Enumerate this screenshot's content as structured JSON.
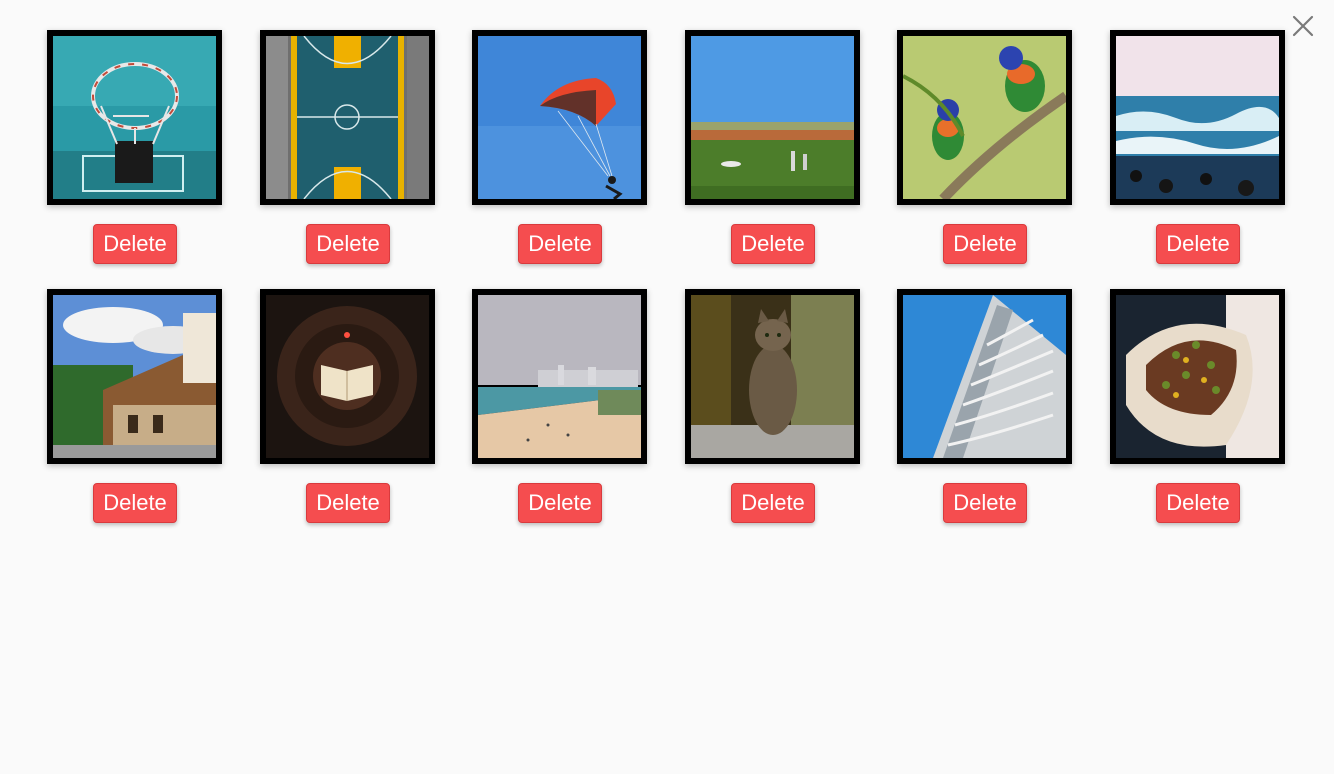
{
  "close": {
    "icon": "close-icon"
  },
  "delete_label": "Delete",
  "photos": [
    {
      "name": "basketball-hoop-photo"
    },
    {
      "name": "basketball-court-aerial-photo"
    },
    {
      "name": "paraglider-photo"
    },
    {
      "name": "grass-field-photo"
    },
    {
      "name": "parrots-photo"
    },
    {
      "name": "ocean-waves-photo"
    },
    {
      "name": "wooden-house-photo"
    },
    {
      "name": "library-books-photo"
    },
    {
      "name": "beach-city-photo"
    },
    {
      "name": "tabby-cat-photo"
    },
    {
      "name": "skyscraper-balconies-photo"
    },
    {
      "name": "food-taco-photo"
    }
  ]
}
